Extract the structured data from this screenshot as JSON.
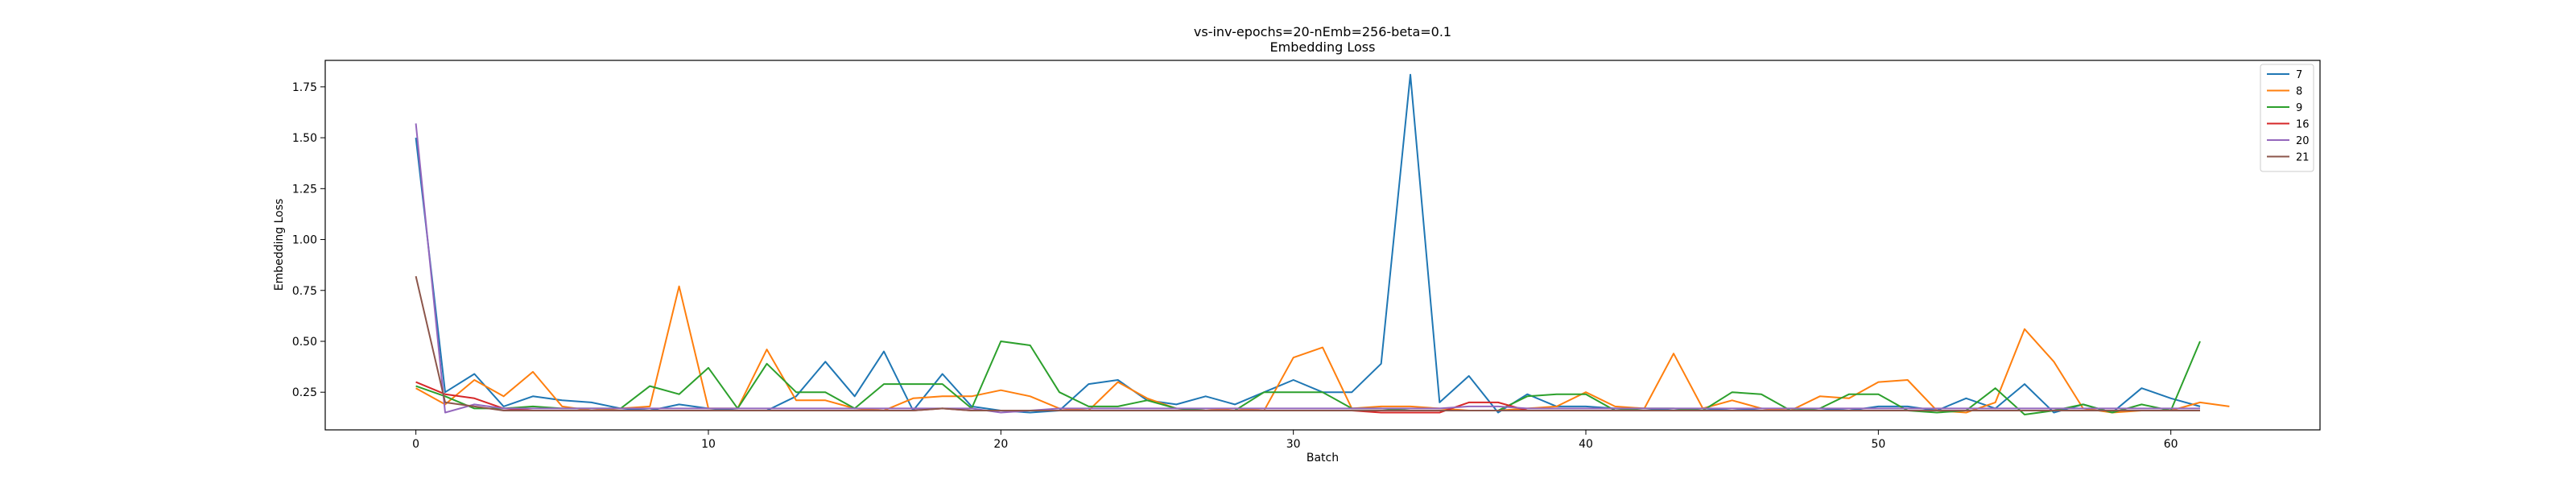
{
  "chart_data": {
    "type": "line",
    "title": "vs-inv-epochs=20-nEmb=256-beta=0.1",
    "subtitle": "Embedding Loss",
    "xlabel": "Batch",
    "ylabel": "Embedding Loss",
    "xlim": [
      -3.1,
      65.1
    ],
    "ylim": [
      0.065,
      1.88
    ],
    "xticks": [
      0,
      10,
      20,
      30,
      40,
      50,
      60
    ],
    "yticks": [
      0.25,
      0.5,
      0.75,
      1.0,
      1.25,
      1.5,
      1.75
    ],
    "ytick_labels": [
      "0.25",
      "0.50",
      "0.75",
      "1.00",
      "1.25",
      "1.50",
      "1.75"
    ],
    "grid": false,
    "legend_position": "top-right",
    "series": [
      {
        "name": "7",
        "color": "#1f77b4",
        "values": [
          1.5,
          0.25,
          0.34,
          0.18,
          0.23,
          0.21,
          0.2,
          0.17,
          0.16,
          0.19,
          0.17,
          0.16,
          0.16,
          0.23,
          0.4,
          0.23,
          0.45,
          0.16,
          0.34,
          0.18,
          0.16,
          0.15,
          0.16,
          0.29,
          0.31,
          0.21,
          0.19,
          0.23,
          0.19,
          0.25,
          0.31,
          0.25,
          0.25,
          0.39,
          1.81,
          0.2,
          0.33,
          0.15,
          0.24,
          0.18,
          0.18,
          0.17,
          0.17,
          0.16,
          0.17,
          0.16,
          0.17,
          0.16,
          0.17,
          0.16,
          0.18,
          0.18,
          0.16,
          0.22,
          0.17,
          0.29,
          0.15,
          0.19,
          0.15,
          0.27,
          0.22,
          0.18
        ]
      },
      {
        "name": "8",
        "color": "#ff7f0e",
        "values": [
          0.27,
          0.19,
          0.31,
          0.23,
          0.35,
          0.18,
          0.16,
          0.17,
          0.18,
          0.77,
          0.17,
          0.17,
          0.46,
          0.21,
          0.21,
          0.17,
          0.16,
          0.22,
          0.23,
          0.23,
          0.26,
          0.23,
          0.17,
          0.16,
          0.3,
          0.22,
          0.17,
          0.16,
          0.17,
          0.16,
          0.42,
          0.47,
          0.17,
          0.18,
          0.18,
          0.17,
          0.16,
          0.16,
          0.17,
          0.18,
          0.25,
          0.18,
          0.17,
          0.44,
          0.17,
          0.21,
          0.17,
          0.16,
          0.23,
          0.22,
          0.3,
          0.31,
          0.16,
          0.15,
          0.2,
          0.56,
          0.4,
          0.17,
          0.15,
          0.16,
          0.16,
          0.2,
          0.18
        ]
      },
      {
        "name": "9",
        "color": "#2ca02c",
        "values": [
          0.28,
          0.23,
          0.17,
          0.17,
          0.18,
          0.17,
          0.17,
          0.17,
          0.28,
          0.24,
          0.37,
          0.17,
          0.39,
          0.25,
          0.25,
          0.17,
          0.29,
          0.29,
          0.29,
          0.17,
          0.5,
          0.48,
          0.25,
          0.18,
          0.18,
          0.21,
          0.17,
          0.16,
          0.16,
          0.25,
          0.25,
          0.25,
          0.17,
          0.17,
          0.16,
          0.16,
          0.16,
          0.16,
          0.23,
          0.24,
          0.24,
          0.16,
          0.17,
          0.17,
          0.16,
          0.25,
          0.24,
          0.16,
          0.17,
          0.24,
          0.24,
          0.16,
          0.15,
          0.16,
          0.27,
          0.14,
          0.16,
          0.19,
          0.15,
          0.19,
          0.16,
          0.5
        ]
      },
      {
        "name": "16",
        "color": "#d62728",
        "values": [
          0.3,
          0.24,
          0.22,
          0.17,
          0.16,
          0.16,
          0.16,
          0.16,
          0.16,
          0.16,
          0.16,
          0.16,
          0.16,
          0.16,
          0.16,
          0.16,
          0.16,
          0.16,
          0.17,
          0.16,
          0.16,
          0.16,
          0.16,
          0.16,
          0.16,
          0.16,
          0.16,
          0.16,
          0.16,
          0.16,
          0.16,
          0.16,
          0.16,
          0.15,
          0.15,
          0.15,
          0.2,
          0.2,
          0.16,
          0.16,
          0.16,
          0.16,
          0.16,
          0.16,
          0.16,
          0.16,
          0.16,
          0.16,
          0.16,
          0.16,
          0.16,
          0.16,
          0.16,
          0.16,
          0.16,
          0.16,
          0.16,
          0.16,
          0.16,
          0.16,
          0.16,
          0.16
        ]
      },
      {
        "name": "20",
        "color": "#9467bd",
        "values": [
          1.57,
          0.15,
          0.19,
          0.17,
          0.17,
          0.17,
          0.17,
          0.17,
          0.17,
          0.17,
          0.17,
          0.17,
          0.17,
          0.17,
          0.17,
          0.17,
          0.17,
          0.17,
          0.17,
          0.17,
          0.15,
          0.16,
          0.17,
          0.17,
          0.17,
          0.17,
          0.17,
          0.17,
          0.17,
          0.17,
          0.17,
          0.17,
          0.17,
          0.17,
          0.17,
          0.17,
          0.18,
          0.18,
          0.17,
          0.17,
          0.17,
          0.17,
          0.17,
          0.17,
          0.17,
          0.17,
          0.17,
          0.17,
          0.17,
          0.17,
          0.17,
          0.17,
          0.17,
          0.17,
          0.17,
          0.17,
          0.17,
          0.17,
          0.17,
          0.17,
          0.17,
          0.17
        ]
      },
      {
        "name": "21",
        "color": "#8c564b",
        "values": [
          0.82,
          0.2,
          0.18,
          0.16,
          0.16,
          0.16,
          0.16,
          0.16,
          0.16,
          0.16,
          0.16,
          0.16,
          0.16,
          0.16,
          0.16,
          0.16,
          0.16,
          0.16,
          0.17,
          0.16,
          0.16,
          0.16,
          0.16,
          0.16,
          0.16,
          0.16,
          0.16,
          0.16,
          0.16,
          0.16,
          0.16,
          0.16,
          0.16,
          0.16,
          0.16,
          0.16,
          0.16,
          0.16,
          0.16,
          0.16,
          0.16,
          0.16,
          0.16,
          0.16,
          0.16,
          0.16,
          0.16,
          0.16,
          0.16,
          0.16,
          0.16,
          0.16,
          0.16,
          0.16,
          0.16,
          0.16,
          0.16,
          0.16,
          0.16,
          0.16,
          0.16,
          0.16
        ]
      }
    ]
  }
}
